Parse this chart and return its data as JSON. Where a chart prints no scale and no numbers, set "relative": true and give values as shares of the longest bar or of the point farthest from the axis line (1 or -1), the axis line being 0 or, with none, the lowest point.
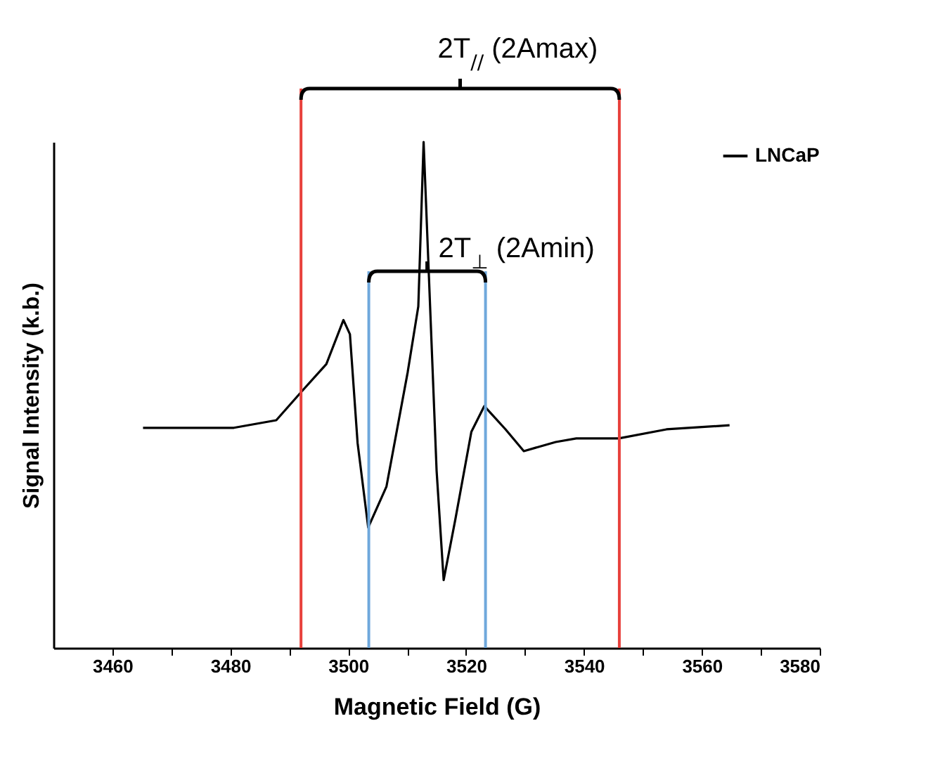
{
  "chart_data": {
    "type": "line",
    "relative": true,
    "xlabel": "Magnetic Field (G)",
    "ylabel": "Signal Intensity (k.b.)",
    "xlim": [
      3450,
      3580
    ],
    "xticks": [
      3460,
      {
        "value": 3470,
        "label": null
      },
      3480,
      {
        "value": 3490,
        "label": null
      },
      3500,
      {
        "value": 3510,
        "label": null
      },
      3520,
      {
        "value": 3530,
        "label": null
      },
      3540,
      {
        "value": 3550,
        "label": null
      },
      3560,
      {
        "value": 3570,
        "label": null
      },
      3580
    ],
    "x": [
      3465.2,
      3480.6,
      3487.8,
      3492.2,
      3496.3,
      3499.2,
      3500.3,
      3501.6,
      3503.4,
      3506.5,
      3510.1,
      3511.9,
      3512.8,
      3513.7,
      3515.0,
      3516.2,
      3518.2,
      3520.9,
      3523.1,
      3526.7,
      3529.8,
      3535.2,
      3538.7,
      3545.9,
      3554.0,
      3564.7
    ],
    "series": [
      {
        "name": "LNCaP",
        "color": "#000000",
        "values": [
          0.435,
          0.435,
          0.45,
          0.508,
          0.561,
          0.648,
          0.62,
          0.405,
          0.238,
          0.319,
          0.545,
          0.675,
          1.0,
          0.734,
          0.351,
          0.134,
          0.255,
          0.427,
          0.478,
          0.432,
          0.389,
          0.407,
          0.414,
          0.414,
          0.432,
          0.44
        ]
      }
    ],
    "ref_lines": [
      {
        "axis": "x",
        "value": 3492,
        "color": "#e8413c"
      },
      {
        "axis": "x",
        "value": 3546,
        "color": "#e8413c"
      },
      {
        "axis": "x",
        "value": 3503.5,
        "color": "#6fa8dc"
      },
      {
        "axis": "x",
        "value": 3523.3,
        "color": "#6fa8dc"
      }
    ],
    "annotations": [
      "2T$_{//}$ (2Amax)",
      "2T$_{⊥}$ (2Amin)"
    ],
    "legend": "top right",
    "grid": false
  }
}
